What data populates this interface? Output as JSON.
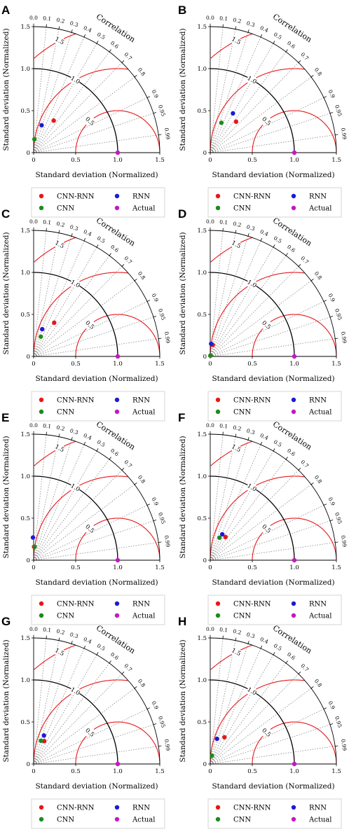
{
  "figure": {
    "common": {
      "x_axis_label": "Standard deviation (Normalized)",
      "y_axis_label": "Standard deviation (Normalized)",
      "arc_title": "Correlation",
      "std_ticks": [
        "0",
        "0.5",
        "1.0",
        "1.5"
      ],
      "correlation_ticks": [
        "0.0",
        "0.1",
        "0.2",
        "0.3",
        "0.4",
        "0.5",
        "0.6",
        "0.7",
        "0.8",
        "0.9",
        "0.95",
        "0.99"
      ],
      "rms_labels": [
        "0.5",
        "1.0",
        "1.5"
      ]
    },
    "colors": {
      "CNN-RNN": "#e8161a",
      "RNN": "#1b1bd6",
      "CNN": "#1c8a1c",
      "Actual": "#c418c4",
      "std_arc": "#000000",
      "rms_arc": "#e8161a",
      "corr_rays": "#888888"
    }
  },
  "chart_data": [
    {
      "panel": "A",
      "type": "scatter",
      "chart_kind": "taylor-diagram",
      "xlabel": "Standard deviation (Normalized)",
      "ylabel": "Standard deviation (Normalized)",
      "std_range": [
        0,
        1.5
      ],
      "series": [
        {
          "name": "CNN-RNN",
          "std": 0.45,
          "corr": 0.53
        },
        {
          "name": "RNN",
          "std": 0.34,
          "corr": 0.28
        },
        {
          "name": "CNN",
          "std": 0.16,
          "corr": 0.06
        },
        {
          "name": "Actual",
          "std": 1.0,
          "corr": 1.0
        }
      ],
      "legend": [
        "CNN-RNN",
        "RNN",
        "CNN",
        "Actual"
      ]
    },
    {
      "panel": "B",
      "type": "scatter",
      "chart_kind": "taylor-diagram",
      "xlabel": "Standard deviation (Normalized)",
      "ylabel": "Standard deviation (Normalized)",
      "std_range": [
        0,
        1.5
      ],
      "series": [
        {
          "name": "CNN-RNN",
          "std": 0.48,
          "corr": 0.64
        },
        {
          "name": "RNN",
          "std": 0.54,
          "corr": 0.5
        },
        {
          "name": "CNN",
          "std": 0.38,
          "corr": 0.35
        },
        {
          "name": "Actual",
          "std": 1.0,
          "corr": 1.0
        }
      ],
      "legend": [
        "CNN-RNN",
        "RNN",
        "CNN",
        "Actual"
      ]
    },
    {
      "panel": "C",
      "type": "scatter",
      "chart_kind": "taylor-diagram",
      "xlabel": "Standard deviation (Normalized)",
      "ylabel": "Standard deviation (Normalized)",
      "std_range": [
        0,
        1.5
      ],
      "series": [
        {
          "name": "CNN-RNN",
          "std": 0.47,
          "corr": 0.52
        },
        {
          "name": "RNN",
          "std": 0.34,
          "corr": 0.3
        },
        {
          "name": "CNN",
          "std": 0.25,
          "corr": 0.34
        },
        {
          "name": "Actual",
          "std": 1.0,
          "corr": 1.0
        }
      ],
      "legend": [
        "CNN-RNN",
        "RNN",
        "CNN",
        "Actual"
      ]
    },
    {
      "panel": "D",
      "type": "scatter",
      "chart_kind": "taylor-diagram",
      "xlabel": "Standard deviation (Normalized)",
      "ylabel": "Standard deviation (Normalized)",
      "std_range": [
        0,
        1.5
      ],
      "series": [
        {
          "name": "CNN-RNN",
          "std": 0.14,
          "corr": 0.22
        },
        {
          "name": "RNN",
          "std": 0.15,
          "corr": 0.07
        },
        {
          "name": "CNN",
          "std": 0.01,
          "corr": 0.2
        },
        {
          "name": "Actual",
          "std": 1.0,
          "corr": 1.0
        }
      ],
      "legend": [
        "CNN-RNN",
        "RNN",
        "CNN",
        "Actual"
      ]
    },
    {
      "panel": "E",
      "type": "scatter",
      "chart_kind": "taylor-diagram",
      "xlabel": "Standard deviation (Normalized)",
      "ylabel": "Standard deviation (Normalized)",
      "std_range": [
        0,
        1.5
      ],
      "series": [
        {
          "name": "CNN-RNN",
          "std": 0.16,
          "corr": 0.03
        },
        {
          "name": "RNN",
          "std": 0.27,
          "corr": -0.03
        },
        {
          "name": "CNN",
          "std": 0.16,
          "corr": 0.08
        },
        {
          "name": "Actual",
          "std": 1.0,
          "corr": 1.0
        }
      ],
      "legend": [
        "CNN-RNN",
        "RNN",
        "CNN",
        "Actual"
      ]
    },
    {
      "panel": "F",
      "type": "scatter",
      "chart_kind": "taylor-diagram",
      "xlabel": "Standard deviation (Normalized)",
      "ylabel": "Standard deviation (Normalized)",
      "std_range": [
        0,
        1.5
      ],
      "series": [
        {
          "name": "CNN-RNN",
          "std": 0.33,
          "corr": 0.55
        },
        {
          "name": "RNN",
          "std": 0.34,
          "corr": 0.42
        },
        {
          "name": "CNN",
          "std": 0.29,
          "corr": 0.38
        },
        {
          "name": "Actual",
          "std": 1.0,
          "corr": 1.0
        }
      ],
      "legend": [
        "CNN-RNN",
        "RNN",
        "CNN",
        "Actual"
      ]
    },
    {
      "panel": "G",
      "type": "scatter",
      "chart_kind": "taylor-diagram",
      "xlabel": "Standard deviation (Normalized)",
      "ylabel": "Standard deviation (Normalized)",
      "std_range": [
        0,
        1.5
      ],
      "series": [
        {
          "name": "CNN-RNN",
          "std": 0.3,
          "corr": 0.42
        },
        {
          "name": "RNN",
          "std": 0.36,
          "corr": 0.34
        },
        {
          "name": "CNN",
          "std": 0.29,
          "corr": 0.3
        },
        {
          "name": "Actual",
          "std": 1.0,
          "corr": 1.0
        }
      ],
      "legend": [
        "CNN-RNN",
        "RNN",
        "CNN",
        "Actual"
      ]
    },
    {
      "panel": "H",
      "type": "scatter",
      "chart_kind": "taylor-diagram",
      "xlabel": "Standard deviation (Normalized)",
      "ylabel": "Standard deviation (Normalized)",
      "std_range": [
        0,
        1.5
      ],
      "series": [
        {
          "name": "CNN-RNN",
          "std": 0.36,
          "corr": 0.47
        },
        {
          "name": "RNN",
          "std": 0.31,
          "corr": 0.26
        },
        {
          "name": "CNN",
          "std": 0.1,
          "corr": 0.2
        },
        {
          "name": "Actual",
          "std": 1.0,
          "corr": 1.0
        }
      ],
      "legend": [
        "CNN-RNN",
        "RNN",
        "CNN",
        "Actual"
      ]
    }
  ]
}
